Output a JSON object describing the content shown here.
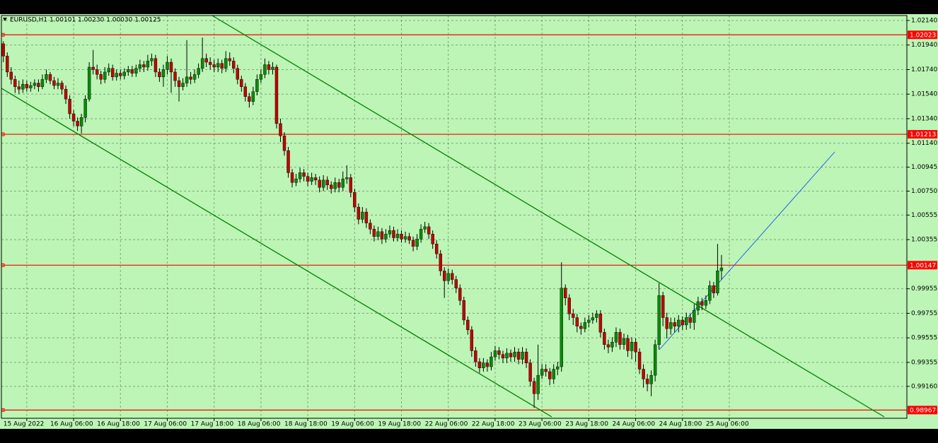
{
  "chart_data": {
    "type": "candlestick",
    "title": "EURUSD,H1  1.00101 1.00230 1.00030 1.00125",
    "up_color": "#0a8a0a",
    "down_color": "#c00000",
    "grid": true,
    "ylim": [
      0.989,
      1.0218
    ],
    "xlim": [
      -0.5,
      231.5
    ],
    "yticks": [
      {
        "value": 1.0214,
        "label": "1.02140"
      },
      {
        "value": 1.0194,
        "label": "1.01940"
      },
      {
        "value": 1.0174,
        "label": "1.01740"
      },
      {
        "value": 1.0154,
        "label": "1.01540"
      },
      {
        "value": 1.0134,
        "label": "1.01340"
      },
      {
        "value": 1.0114,
        "label": "1.01140"
      },
      1.00945,
      {
        "value": 1.0075,
        "label": "1.00750"
      },
      1.00555,
      1.00355,
      0.99955,
      0.99755,
      0.99555,
      0.99355,
      {
        "value": 0.9916,
        "label": "0.99160"
      }
    ],
    "xticks": [
      {
        "value": 6,
        "label": "15 Aug 2022"
      },
      {
        "value": 18,
        "label": "16 Aug 06:00"
      },
      {
        "value": 30,
        "label": "16 Aug 18:00"
      },
      {
        "value": 42,
        "label": "17 Aug 06:00"
      },
      {
        "value": 54,
        "label": "17 Aug 18:00"
      },
      {
        "value": 66,
        "label": "18 Aug 06:00"
      },
      {
        "value": 78,
        "label": "18 Aug 18:00"
      },
      {
        "value": 90,
        "label": "19 Aug 06:00"
      },
      {
        "value": 102,
        "label": "19 Aug 18:00"
      },
      {
        "value": 114,
        "label": "22 Aug 06:00"
      },
      {
        "value": 126,
        "label": "22 Aug 18:00"
      },
      {
        "value": 138,
        "label": "23 Aug 06:00"
      },
      {
        "value": 150,
        "label": "23 Aug 18:00"
      },
      {
        "value": 162,
        "label": "24 Aug 06:00"
      },
      {
        "value": 174,
        "label": "24 Aug 18:00"
      },
      {
        "value": 186,
        "label": "25 Aug 06:00"
      }
    ],
    "levels": [
      1.02023,
      1.01213,
      1.00147,
      0.98967
    ],
    "level_color": "#ff0000",
    "open": [
      1.0195,
      1.0185,
      1.0172,
      1.0166,
      1.016,
      1.0158,
      1.0162,
      1.0159,
      1.0161,
      1.0163,
      1.016,
      1.0166,
      1.017,
      1.0165,
      1.0161,
      1.0163,
      1.0158,
      1.015,
      1.0138,
      1.0132,
      1.0128,
      1.0135,
      1.015,
      1.0176,
      1.0174,
      1.017,
      1.0166,
      1.0172,
      1.0175,
      1.0168,
      1.0171,
      1.0169,
      1.0172,
      1.0174,
      1.0171,
      1.0175,
      1.0178,
      1.0176,
      1.0181,
      1.0183,
      1.0172,
      1.0168,
      1.0174,
      1.018,
      1.0172,
      1.0165,
      1.016,
      1.0163,
      1.0168,
      1.0166,
      1.017,
      1.0175,
      1.0183,
      1.018,
      1.0178,
      1.0176,
      1.0179,
      1.0175,
      1.0183,
      1.0181,
      1.0175,
      1.0166,
      1.016,
      1.0152,
      1.0148,
      1.0156,
      1.0166,
      1.017,
      1.0178,
      1.0174,
      1.0176,
      1.013,
      1.012,
      1.0108,
      1.009,
      1.0082,
      1.0085,
      1.009,
      1.0087,
      1.0083,
      1.0086,
      1.0084,
      1.0078,
      1.0084,
      1.008,
      1.0077,
      1.0082,
      1.0078,
      1.0085,
      1.0086,
      1.0074,
      1.0062,
      1.0052,
      1.0058,
      1.0049,
      1.0044,
      1.0038,
      1.0042,
      1.0036,
      1.004,
      1.0043,
      1.0037,
      1.004,
      1.0036,
      1.0038,
      1.0035,
      1.003,
      1.0036,
      1.0044,
      1.0046,
      1.004,
      1.0032,
      1.0024,
      1.001,
      1.0002,
      1.0008,
      1.0003,
      0.9996,
      0.9986,
      0.997,
      0.9962,
      0.9945,
      0.9936,
      0.9931,
      0.9935,
      0.9932,
      0.994,
      0.9945,
      0.9942,
      0.9939,
      0.9943,
      0.994,
      0.9944,
      0.9938,
      0.9944,
      0.9935,
      0.992,
      0.991,
      0.9925,
      0.993,
      0.9928,
      0.9922,
      0.993,
      0.9932,
      0.9996,
      0.9988,
      0.9975,
      0.9972,
      0.9965,
      0.9963,
      0.9968,
      0.997,
      0.9972,
      0.9975,
      0.996,
      0.995,
      0.9948,
      0.9952,
      0.996,
      0.995,
      0.9955,
      0.9945,
      0.9952,
      0.9944,
      0.993,
      0.9922,
      0.9918,
      0.9925,
      0.995,
      0.999,
      0.9972,
      0.9963,
      0.9968,
      0.9965,
      0.997,
      0.9966,
      0.9972,
      0.9968,
      0.9978,
      0.9985,
      0.9982,
      0.9986,
      0.9998,
      0.9992,
      1.00101
    ],
    "high": [
      1.0197,
      1.0188,
      1.0176,
      1.0169,
      1.0165,
      1.0166,
      1.0165,
      1.0164,
      1.0166,
      1.0166,
      1.017,
      1.0174,
      1.0172,
      1.0168,
      1.0167,
      1.0165,
      1.0161,
      1.0153,
      1.0141,
      1.0135,
      1.0138,
      1.0153,
      1.018,
      1.019,
      1.0178,
      1.0173,
      1.0176,
      1.0179,
      1.0178,
      1.0174,
      1.0174,
      1.0175,
      1.0177,
      1.0177,
      1.0178,
      1.0182,
      1.0181,
      1.0186,
      1.0187,
      1.0186,
      1.0175,
      1.0178,
      1.0185,
      1.0183,
      1.0175,
      1.0168,
      1.0167,
      1.0198,
      1.0172,
      1.0174,
      1.0179,
      1.02,
      1.0187,
      1.0184,
      1.0182,
      1.0183,
      1.0182,
      1.0189,
      1.0188,
      1.0184,
      1.0178,
      1.0169,
      1.0163,
      1.0155,
      1.016,
      1.017,
      1.0174,
      1.0183,
      1.0181,
      1.018,
      1.0178,
      1.0134,
      1.0123,
      1.0111,
      1.0093,
      1.0089,
      1.0094,
      1.0093,
      1.009,
      1.009,
      1.0089,
      1.0087,
      1.0088,
      1.0087,
      1.0083,
      1.0086,
      1.0085,
      1.0091,
      1.0096,
      1.0089,
      1.0077,
      1.0065,
      1.0062,
      1.0061,
      1.0052,
      1.0047,
      1.0046,
      1.0045,
      1.0044,
      1.0047,
      1.0046,
      1.0044,
      1.0043,
      1.0042,
      1.0041,
      1.0038,
      1.004,
      1.0048,
      1.005,
      1.0049,
      1.0043,
      1.0035,
      1.0027,
      1.0013,
      1.0012,
      1.0011,
      1.0006,
      0.9999,
      0.9989,
      0.9973,
      0.9965,
      0.9948,
      0.9939,
      0.9939,
      0.9938,
      0.9944,
      0.9949,
      0.9948,
      0.9945,
      0.9947,
      0.9946,
      0.9948,
      0.9947,
      0.9948,
      0.9947,
      0.9938,
      0.9923,
      0.995,
      0.9934,
      0.9934,
      0.9931,
      0.9934,
      0.9936,
      1.0017,
      0.9999,
      0.9991,
      0.9979,
      0.9975,
      0.9968,
      0.9972,
      0.9974,
      0.9976,
      0.9978,
      0.9978,
      0.9963,
      0.9954,
      0.9956,
      0.9964,
      0.9963,
      0.9959,
      0.9958,
      0.9956,
      0.9955,
      0.9947,
      0.9934,
      0.9926,
      0.9929,
      0.9954,
      1.0,
      0.9993,
      0.9976,
      0.9972,
      0.9972,
      0.9974,
      0.9973,
      0.9976,
      0.9975,
      0.9983,
      0.9989,
      0.9988,
      0.999,
      1.0002,
      1.0001,
      1.0032,
      1.0023
    ],
    "low": [
      1.018,
      1.0168,
      1.0162,
      1.0155,
      1.0154,
      1.0155,
      1.0156,
      1.0156,
      1.0158,
      1.0156,
      1.0158,
      1.0163,
      1.0162,
      1.0158,
      1.0158,
      1.0154,
      1.0146,
      1.0134,
      1.0128,
      1.0124,
      1.0122,
      1.0131,
      1.0148,
      1.017,
      1.0166,
      1.0162,
      1.0163,
      1.0169,
      1.0165,
      1.0165,
      1.0166,
      1.0166,
      1.0169,
      1.0168,
      1.0168,
      1.0172,
      1.0172,
      1.0173,
      1.0177,
      1.0168,
      1.0164,
      1.016,
      1.017,
      1.0155,
      1.016,
      1.0148,
      1.0157,
      1.016,
      1.0162,
      1.0163,
      1.0167,
      1.0172,
      1.0176,
      1.0174,
      1.0172,
      1.0172,
      1.0171,
      1.0172,
      1.0177,
      1.0171,
      1.0162,
      1.0156,
      1.0148,
      1.0143,
      1.0145,
      1.0153,
      1.0163,
      1.0167,
      1.017,
      1.017,
      1.0126,
      1.0115,
      1.0104,
      1.0086,
      1.0078,
      1.0079,
      1.0082,
      1.0083,
      1.0079,
      1.008,
      1.008,
      1.0074,
      1.0075,
      1.0076,
      1.0073,
      1.0074,
      1.0074,
      1.0075,
      1.0081,
      1.007,
      1.0058,
      1.0048,
      1.0049,
      1.0045,
      1.004,
      1.0034,
      1.0035,
      1.0032,
      1.0033,
      1.0037,
      1.0034,
      1.0034,
      1.0033,
      1.0033,
      1.0032,
      1.0026,
      1.0027,
      1.0033,
      1.0041,
      1.0036,
      1.0028,
      1.002,
      1.0006,
      0.9988,
      0.9999,
      0.9999,
      0.9992,
      0.9982,
      0.9966,
      0.9958,
      0.994,
      0.9932,
      0.9927,
      0.9928,
      0.9928,
      0.9929,
      0.9937,
      0.9938,
      0.9935,
      0.9935,
      0.9936,
      0.9936,
      0.9934,
      0.9934,
      0.9931,
      0.9916,
      0.98985,
      0.9905,
      0.9922,
      0.9924,
      0.9917,
      0.9918,
      0.9925,
      0.9928,
      0.9982,
      0.997,
      0.9966,
      0.996,
      0.9958,
      0.996,
      0.9964,
      0.9967,
      0.9968,
      0.9956,
      0.9946,
      0.9943,
      0.9944,
      0.9948,
      0.9946,
      0.9946,
      0.994,
      0.9938,
      0.9936,
      0.9926,
      0.9915,
      0.9912,
      0.9908,
      0.992,
      0.9946,
      0.9965,
      0.9955,
      0.9958,
      0.996,
      0.996,
      0.9962,
      0.9962,
      0.9963,
      0.9962,
      0.9974,
      0.9978,
      0.9979,
      0.9983,
      0.9988,
      0.999,
      1.0003
    ],
    "close": [
      1.0185,
      1.0172,
      1.0166,
      1.016,
      1.0158,
      1.0162,
      1.0159,
      1.0161,
      1.0163,
      1.016,
      1.0166,
      1.017,
      1.0165,
      1.0161,
      1.0163,
      1.0158,
      1.015,
      1.0138,
      1.0132,
      1.0128,
      1.0135,
      1.015,
      1.0176,
      1.0174,
      1.017,
      1.0166,
      1.0172,
      1.0175,
      1.0168,
      1.0171,
      1.0169,
      1.0172,
      1.0174,
      1.0171,
      1.0175,
      1.0178,
      1.0176,
      1.0181,
      1.0183,
      1.0172,
      1.0168,
      1.0174,
      1.018,
      1.0172,
      1.0165,
      1.016,
      1.0163,
      1.0168,
      1.0166,
      1.017,
      1.0175,
      1.0183,
      1.018,
      1.0178,
      1.0176,
      1.0179,
      1.0175,
      1.0183,
      1.0181,
      1.0175,
      1.0166,
      1.016,
      1.0152,
      1.0148,
      1.0156,
      1.0166,
      1.017,
      1.0178,
      1.0174,
      1.0176,
      1.013,
      1.012,
      1.0108,
      1.009,
      1.0082,
      1.0085,
      1.009,
      1.0087,
      1.0083,
      1.0086,
      1.0084,
      1.0078,
      1.0084,
      1.008,
      1.0077,
      1.0082,
      1.0078,
      1.0085,
      1.0086,
      1.0074,
      1.0062,
      1.0052,
      1.0058,
      1.0049,
      1.0044,
      1.0038,
      1.0042,
      1.0036,
      1.004,
      1.0043,
      1.0037,
      1.004,
      1.0036,
      1.0038,
      1.0035,
      1.003,
      1.0036,
      1.0044,
      1.0046,
      1.004,
      1.0032,
      1.0024,
      1.001,
      1.0002,
      1.0008,
      1.0003,
      0.9996,
      0.9986,
      0.997,
      0.9962,
      0.9945,
      0.9936,
      0.9931,
      0.9935,
      0.9932,
      0.994,
      0.9945,
      0.9942,
      0.9939,
      0.9943,
      0.994,
      0.9944,
      0.9938,
      0.9944,
      0.9935,
      0.992,
      0.991,
      0.9925,
      0.993,
      0.9928,
      0.9922,
      0.993,
      0.9932,
      0.9996,
      0.9988,
      0.9975,
      0.9972,
      0.9965,
      0.9963,
      0.9968,
      0.997,
      0.9972,
      0.9975,
      0.996,
      0.995,
      0.9948,
      0.9952,
      0.996,
      0.995,
      0.9955,
      0.9945,
      0.9952,
      0.9944,
      0.993,
      0.9922,
      0.9918,
      0.9925,
      0.995,
      0.999,
      0.9972,
      0.9963,
      0.9968,
      0.9965,
      0.997,
      0.9966,
      0.9972,
      0.9968,
      0.9978,
      0.9985,
      0.9982,
      0.9986,
      0.9998,
      0.9992,
      1.00101,
      1.00125
    ]
  }
}
